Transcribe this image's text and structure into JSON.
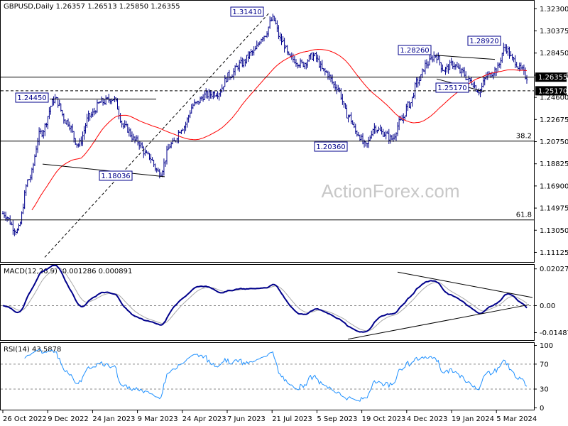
{
  "chart_data": {
    "type": "candlestick",
    "symbol_line": "GBPUSD,Daily  1.26357 1.26513 1.25850 1.26355",
    "watermark": "ActionForex.com",
    "x_ticks": [
      "26 Oct 2022",
      "9 Dec 2022",
      "24 Jan 2023",
      "9 Mar 2023",
      "24 Apr 2023",
      "7 Jun 2023",
      "21 Jul 2023",
      "5 Sep 2023",
      "19 Oct 2023",
      "4 Dec 2023",
      "19 Jan 2024",
      "5 Mar 2024"
    ],
    "price": {
      "ylim": [
        1.1029,
        1.33
      ],
      "y_ticks": [
        "1.32300",
        "1.30375",
        "1.28450",
        "1.26525",
        "1.24600",
        "1.22675",
        "1.20750",
        "1.18825",
        "1.16900",
        "1.14975",
        "1.13050",
        "1.11125"
      ],
      "current": "1.26355",
      "support": "1.25170",
      "sma_color": "#ff0000",
      "bar_color": "#00008b",
      "series": [
        {
          "name": "ohlc",
          "x": [
            0,
            200
          ],
          "comment_only": ""
        }
      ],
      "points": [
        {
          "label": "1.31410",
          "x": "2023-07-13",
          "y": 1.3141
        },
        {
          "label": "1.24450",
          "x": "2022-12-14",
          "y": 1.2445
        },
        {
          "label": "1.18036",
          "x": "2023-03-08",
          "y": 1.18036
        },
        {
          "label": "1.20360",
          "x": "2023-10-04",
          "y": 1.2036
        },
        {
          "label": "1.28260",
          "x": "2023-12-28",
          "y": 1.2826
        },
        {
          "label": "1.25170",
          "x": "2024-01-09",
          "y": 1.2517
        },
        {
          "label": "1.28920",
          "x": "2024-03-08",
          "y": 1.2892
        }
      ],
      "fib_levels": [
        {
          "label": "38.2",
          "value": 1.208
        },
        {
          "label": "61.8",
          "value": 1.1395
        }
      ]
    },
    "macd": {
      "title": "MACD(12,26,9) -0.001286 0.000891",
      "ylim": [
        -0.019,
        0.0225
      ],
      "y_ticks": [
        "0.02027",
        "0.00",
        "-0.014877"
      ],
      "line_color": "#00008b",
      "signal_color": "#a9a9a9"
    },
    "rsi": {
      "title": "RSI(14) 43.5878",
      "ylim": [
        -3,
        104
      ],
      "y_ticks": [
        "100",
        "70",
        "30",
        "0"
      ],
      "line_color": "#1e90ff"
    }
  }
}
